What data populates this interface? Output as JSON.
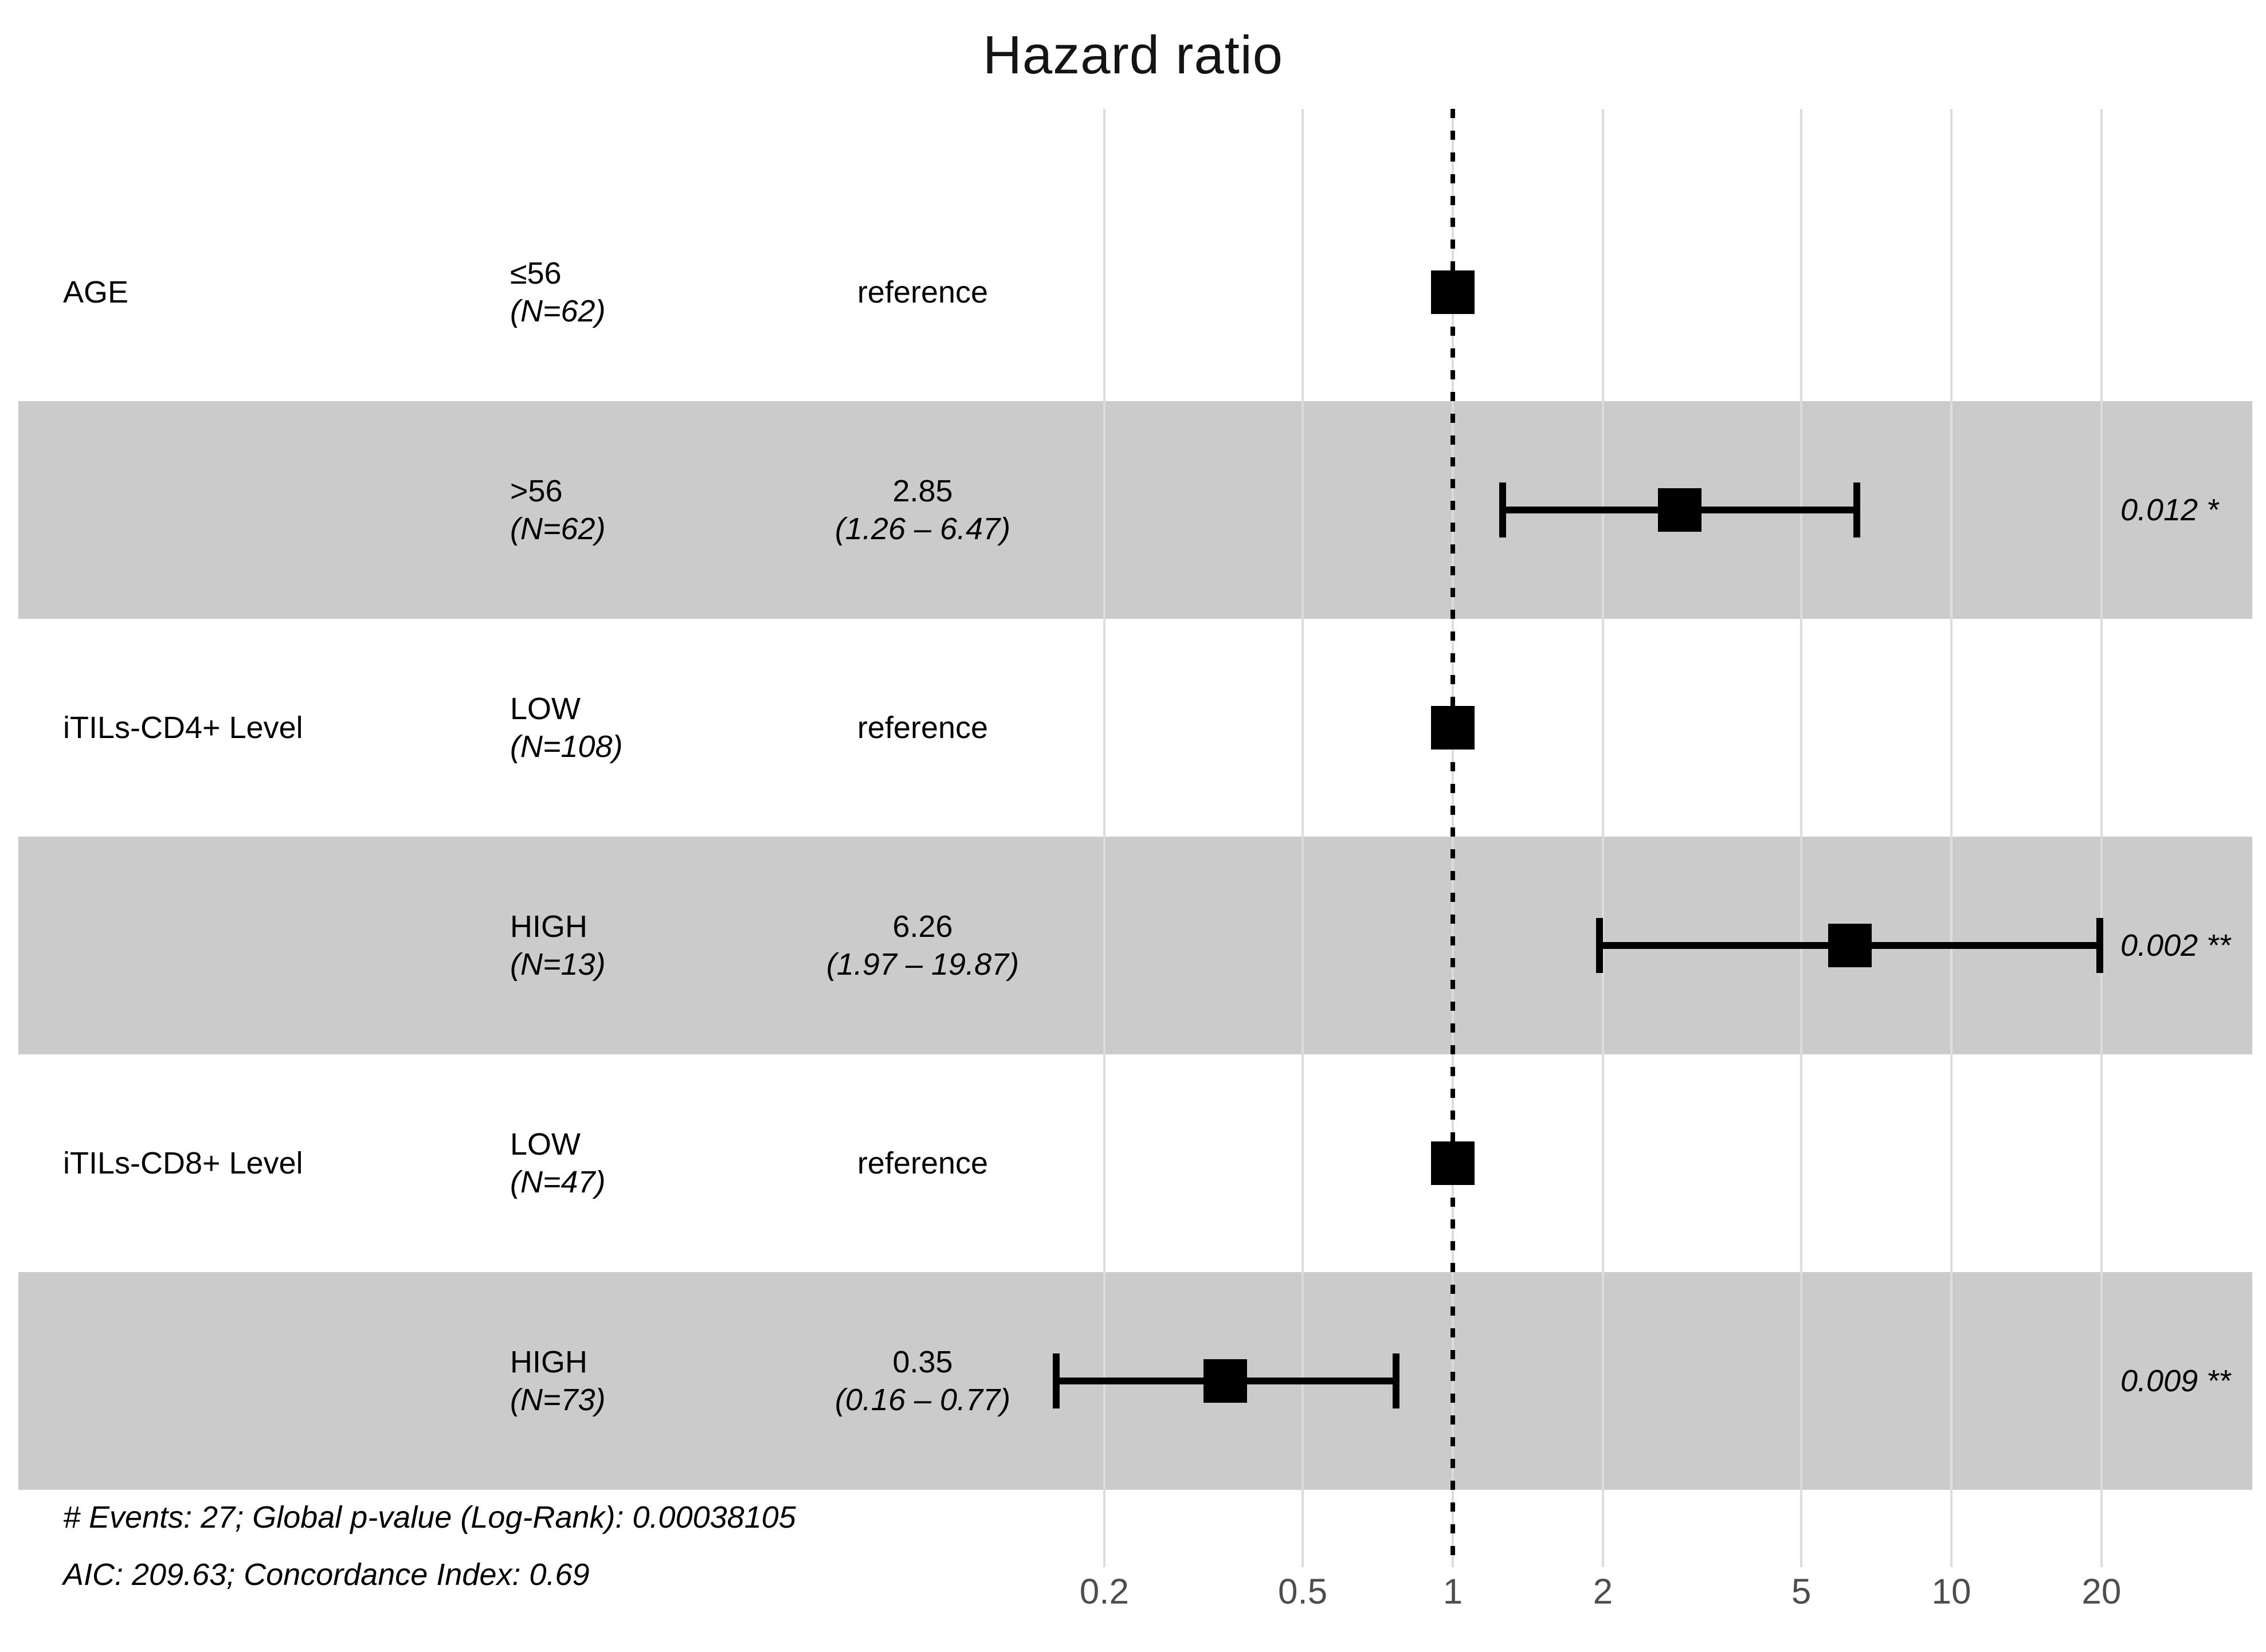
{
  "colors": {
    "background": "#ffffff",
    "band": "#cbcbcb",
    "gridline": "#dcdcdc",
    "marker": "#000000",
    "reference_line": "#000000",
    "tick_label": "#4d4d4d"
  },
  "chart_data": {
    "type": "forest",
    "title": "Hazard ratio",
    "x_scale": "log10",
    "x_ticks": [
      0.2,
      0.5,
      1,
      2,
      5,
      10,
      20
    ],
    "reference_line": 1,
    "grid": "vertical-only",
    "legend": "none",
    "rows": [
      {
        "variable": "AGE",
        "group": "≤56",
        "n_label": "(N=62)",
        "estimate_label": "reference",
        "hr": 1,
        "shaded": false
      },
      {
        "variable": "",
        "group": ">56",
        "n_label": "(N=62)",
        "estimate_label": "2.85",
        "ci_label": "(1.26 – 6.47)",
        "hr": 2.85,
        "ci_low": 1.26,
        "ci_high": 6.47,
        "p_label": "0.012 *",
        "shaded": true
      },
      {
        "variable": "iTILs-CD4+ Level",
        "group": "LOW",
        "n_label": "(N=108)",
        "estimate_label": "reference",
        "hr": 1,
        "shaded": false
      },
      {
        "variable": "",
        "group": "HIGH",
        "n_label": "(N=13)",
        "estimate_label": "6.26",
        "ci_label": "(1.97 – 19.87)",
        "hr": 6.26,
        "ci_low": 1.97,
        "ci_high": 19.87,
        "p_label": "0.002 **",
        "shaded": true
      },
      {
        "variable": "iTILs-CD8+ Level",
        "group": "LOW",
        "n_label": "(N=47)",
        "estimate_label": "reference",
        "hr": 1,
        "shaded": false
      },
      {
        "variable": "",
        "group": "HIGH",
        "n_label": "(N=73)",
        "estimate_label": "0.35",
        "ci_label": "(0.16 – 0.77)",
        "hr": 0.35,
        "ci_low": 0.16,
        "ci_high": 0.77,
        "p_label": "0.009 **",
        "shaded": true
      }
    ],
    "footnotes": [
      "# Events: 27; Global p-value (Log-Rank): 0.00038105",
      "AIC: 209.63; Concordance Index: 0.69"
    ]
  }
}
